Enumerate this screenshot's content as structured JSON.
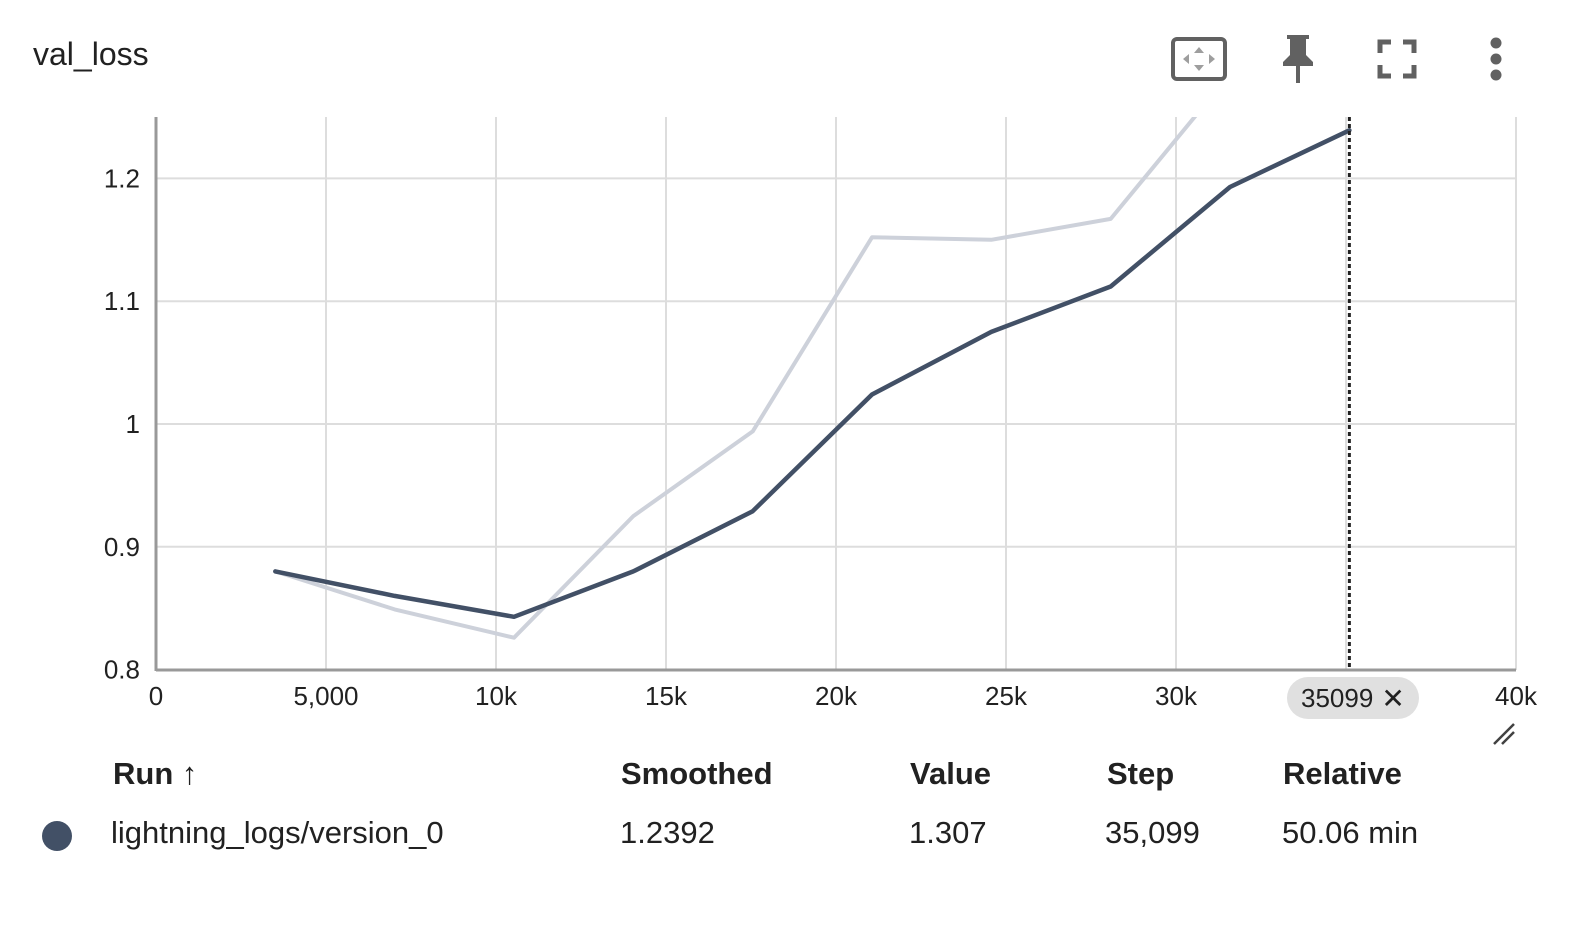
{
  "card": {
    "title": "val_loss",
    "icons": [
      "fit-domain-icon",
      "pin-icon",
      "fullscreen-icon",
      "more-vert-icon"
    ]
  },
  "colors": {
    "smoothed": "#425066",
    "raw": "#cdd1da",
    "grid": "#dddddd",
    "axis": "#999999"
  },
  "chart_data": {
    "type": "line",
    "title": "val_loss",
    "xlim": [
      0,
      40000
    ],
    "ylim": [
      0.8,
      1.25
    ],
    "x_ticks": [
      0,
      5000,
      10000,
      15000,
      20000,
      25000,
      30000,
      35000,
      40000
    ],
    "x_tick_labels": [
      "0",
      "5,000",
      "10k",
      "15k",
      "20k",
      "25k",
      "30k",
      "35k",
      "40k"
    ],
    "y_ticks": [
      0.8,
      0.9,
      1.0,
      1.1,
      1.2
    ],
    "y_tick_labels": [
      "0.8",
      "0.9",
      "1",
      "1.1",
      "1.2"
    ],
    "grid": true,
    "series": [
      {
        "name": "lightning_logs/version_0",
        "kind": "raw",
        "x": [
          3509,
          7019,
          10529,
          14039,
          17549,
          21059,
          24569,
          28079,
          31589,
          35099
        ],
        "y": [
          0.88,
          0.849,
          0.826,
          0.925,
          0.994,
          1.152,
          1.15,
          1.167,
          1.285,
          1.307
        ]
      },
      {
        "name": "lightning_logs/version_0",
        "kind": "smoothed",
        "x": [
          3509,
          7019,
          10529,
          14039,
          17549,
          21059,
          24569,
          28079,
          31589,
          35099
        ],
        "y": [
          0.88,
          0.86,
          0.843,
          0.88,
          0.929,
          1.024,
          1.075,
          1.112,
          1.193,
          1.2392
        ]
      }
    ],
    "cursor_step": 35099
  },
  "cursor_chip": {
    "label": "35099"
  },
  "table": {
    "headers": {
      "run": "Run ↑",
      "smoothed": "Smoothed",
      "value": "Value",
      "step": "Step",
      "relative": "Relative"
    },
    "rows": [
      {
        "run": "lightning_logs/version_0",
        "smoothed": "1.2392",
        "value": "1.307",
        "step": "35,099",
        "relative": "50.06 min"
      }
    ]
  }
}
